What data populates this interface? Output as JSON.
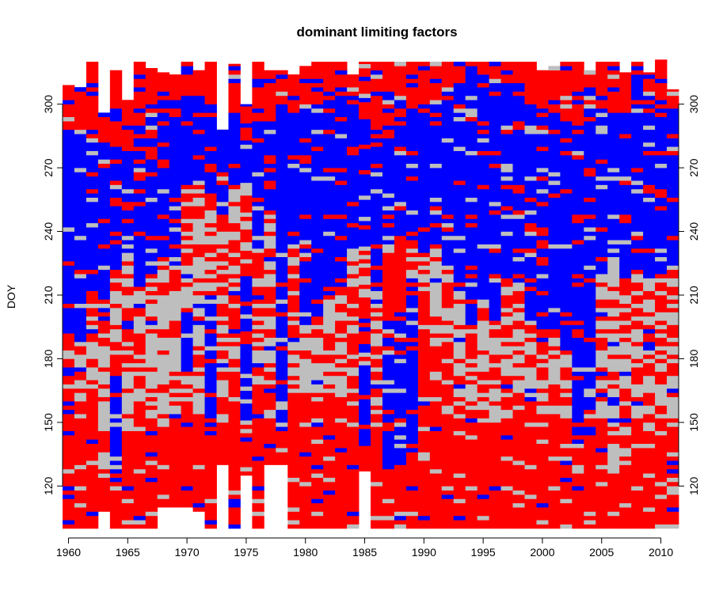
{
  "chart_data": {
    "type": "heatmap",
    "title": "dominant limiting factors",
    "xlabel": "",
    "ylabel": "DOY",
    "xlim": [
      1959.5,
      2011.5
    ],
    "ylim": [
      100,
      320
    ],
    "x_ticks": [
      "1960",
      "1965",
      "1970",
      "1975",
      "1980",
      "1985",
      "1990",
      "1995",
      "2000",
      "2005",
      "2010"
    ],
    "x_tick_values": [
      1960,
      1965,
      1970,
      1975,
      1980,
      1985,
      1990,
      1995,
      2000,
      2005,
      2010
    ],
    "y_ticks": [
      "120",
      "150",
      "180",
      "210",
      "240",
      "270",
      "300"
    ],
    "y_tick_values": [
      120,
      150,
      180,
      210,
      240,
      270,
      300
    ],
    "right_axis_ticks": true,
    "grid": false,
    "legend": "none",
    "factors": [
      {
        "key": "red",
        "color": "#ff0000"
      },
      {
        "key": "gray",
        "color": "#bebebe"
      },
      {
        "key": "blue",
        "color": "#0000ff"
      }
    ],
    "years": [
      1960,
      1961,
      1962,
      1963,
      1964,
      1965,
      1966,
      1967,
      1968,
      1969,
      1970,
      1971,
      1972,
      1973,
      1974,
      1975,
      1976,
      1977,
      1978,
      1979,
      1980,
      1981,
      1982,
      1983,
      1984,
      1985,
      1986,
      1987,
      1988,
      1989,
      1990,
      1991,
      1992,
      1993,
      1994,
      1995,
      1996,
      1997,
      1998,
      1999,
      2000,
      2001,
      2002,
      2003,
      2004,
      2005,
      2006,
      2007,
      2008,
      2009,
      2010,
      2011
    ],
    "season_end_doy": [
      309,
      308,
      320,
      296,
      316,
      302,
      320,
      317,
      315,
      314,
      320,
      316,
      320,
      288,
      319,
      300,
      320,
      316,
      316,
      314,
      318,
      320,
      320,
      320,
      314,
      320,
      320,
      320,
      320,
      320,
      320,
      320,
      320,
      320,
      320,
      320,
      320,
      320,
      320,
      320,
      316,
      318,
      320,
      320,
      316,
      320,
      320,
      315,
      320,
      315,
      321,
      307
    ],
    "season_start_doy": [
      100,
      100,
      100,
      108,
      100,
      100,
      100,
      100,
      110,
      110,
      110,
      108,
      100,
      130,
      100,
      125,
      100,
      130,
      130,
      100,
      100,
      100,
      100,
      100,
      100,
      127,
      100,
      100,
      100,
      100,
      100,
      100,
      100,
      100,
      100,
      100,
      100,
      100,
      100,
      100,
      100,
      100,
      100,
      100,
      100,
      100,
      100,
      100,
      100,
      100,
      100,
      100
    ],
    "main_blue_period": [
      [
        192,
        288
      ],
      [
        188,
        286
      ],
      [
        213,
        284
      ],
      [
        196,
        283
      ],
      [
        222,
        280
      ],
      [
        231,
        278
      ],
      [
        215,
        285
      ],
      [
        220,
        284
      ],
      [
        228,
        296
      ],
      [
        228,
        296
      ],
      [
        262,
        304
      ],
      [
        262,
        305
      ],
      [
        256,
        300
      ],
      [
        248,
        298
      ],
      [
        262,
        296
      ],
      [
        264,
        284
      ],
      [
        232,
        295
      ],
      [
        250,
        294
      ],
      [
        192,
        301
      ],
      [
        232,
        297
      ],
      [
        196,
        300
      ],
      [
        200,
        301
      ],
      [
        210,
        303
      ],
      [
        215,
        303
      ],
      [
        232,
        305
      ],
      [
        233,
        293
      ],
      [
        212,
        285
      ],
      [
        240,
        284
      ],
      [
        236,
        290
      ],
      [
        236,
        300
      ],
      [
        228,
        303
      ],
      [
        233,
        306
      ],
      [
        224,
        303
      ],
      [
        212,
        310
      ],
      [
        197,
        319
      ],
      [
        209,
        312
      ],
      [
        196,
        311
      ],
      [
        219,
        310
      ],
      [
        216,
        310
      ],
      [
        199,
        300
      ],
      [
        195,
        298
      ],
      [
        194,
        296
      ],
      [
        182,
        292
      ],
      [
        182,
        293
      ],
      [
        198,
        298
      ],
      [
        221,
        299
      ],
      [
        228,
        296
      ],
      [
        218,
        296
      ],
      [
        222,
        318
      ],
      [
        219,
        300
      ],
      [
        221,
        297
      ],
      [
        224,
        296
      ]
    ],
    "secondary_blue_period": [
      [
        null,
        null
      ],
      [
        null,
        null
      ],
      [
        null,
        null
      ],
      [
        null,
        null
      ],
      [
        127,
        172
      ],
      [
        null,
        null
      ],
      [
        null,
        null
      ],
      [
        null,
        null
      ],
      [
        null,
        null
      ],
      [
        null,
        null
      ],
      [
        175,
        204
      ],
      [
        null,
        null
      ],
      [
        144,
        210
      ],
      [
        null,
        null
      ],
      [
        null,
        null
      ],
      [
        151,
        220
      ],
      [
        null,
        null
      ],
      [
        null,
        null
      ],
      [
        148,
        216
      ],
      [
        null,
        null
      ],
      [
        null,
        null
      ],
      [
        null,
        null
      ],
      [
        null,
        null
      ],
      [
        null,
        null
      ],
      [
        null,
        null
      ],
      [
        140,
        188
      ],
      [
        null,
        null
      ],
      [
        128,
        198
      ],
      [
        130,
        202
      ],
      [
        136,
        210
      ],
      [
        null,
        null
      ],
      [
        null,
        null
      ],
      [
        null,
        null
      ],
      [
        null,
        null
      ],
      [
        null,
        null
      ],
      [
        null,
        null
      ],
      [
        null,
        null
      ],
      [
        null,
        null
      ],
      [
        null,
        null
      ],
      [
        null,
        null
      ],
      [
        null,
        null
      ],
      [
        null,
        null
      ],
      [
        null,
        null
      ],
      [
        138,
        190
      ],
      [
        145,
        216
      ],
      [
        null,
        null
      ],
      [
        null,
        null
      ],
      [
        null,
        null
      ],
      [
        null,
        null
      ],
      [
        null,
        null
      ],
      [
        null,
        null
      ],
      [
        null,
        null
      ]
    ],
    "main_gray_period": [
      [
        163,
        192
      ],
      [
        156,
        188
      ],
      [
        164,
        200
      ],
      [
        124,
        205
      ],
      [
        178,
        222
      ],
      [
        146,
        231
      ],
      [
        158,
        215
      ],
      [
        150,
        218
      ],
      [
        150,
        262
      ],
      [
        153,
        250
      ],
      [
        165,
        262
      ],
      [
        155,
        262
      ],
      [
        192,
        250
      ],
      [
        150,
        248
      ],
      [
        168,
        262
      ],
      [
        150,
        264
      ],
      [
        165,
        232
      ],
      [
        152,
        250
      ],
      [
        166,
        192
      ],
      [
        165,
        232
      ],
      [
        162,
        196
      ],
      [
        160,
        200
      ],
      [
        165,
        210
      ],
      [
        162,
        215
      ],
      [
        168,
        232
      ],
      [
        200,
        233
      ],
      [
        155,
        212
      ],
      [
        228,
        250
      ],
      [
        240,
        270
      ],
      [
        215,
        236
      ],
      [
        210,
        228
      ],
      [
        186,
        232
      ],
      [
        148,
        224
      ],
      [
        148,
        212
      ],
      [
        147,
        197
      ],
      [
        150,
        209
      ],
      [
        148,
        196
      ],
      [
        155,
        219
      ],
      [
        156,
        216
      ],
      [
        154,
        199
      ],
      [
        154,
        195
      ],
      [
        155,
        194
      ],
      [
        152,
        182
      ],
      [
        155,
        182
      ],
      [
        163,
        198
      ],
      [
        154,
        221
      ],
      [
        128,
        228
      ],
      [
        143,
        218
      ],
      [
        148,
        222
      ],
      [
        132,
        219
      ],
      [
        145,
        221
      ],
      [
        147,
        224
      ]
    ]
  }
}
